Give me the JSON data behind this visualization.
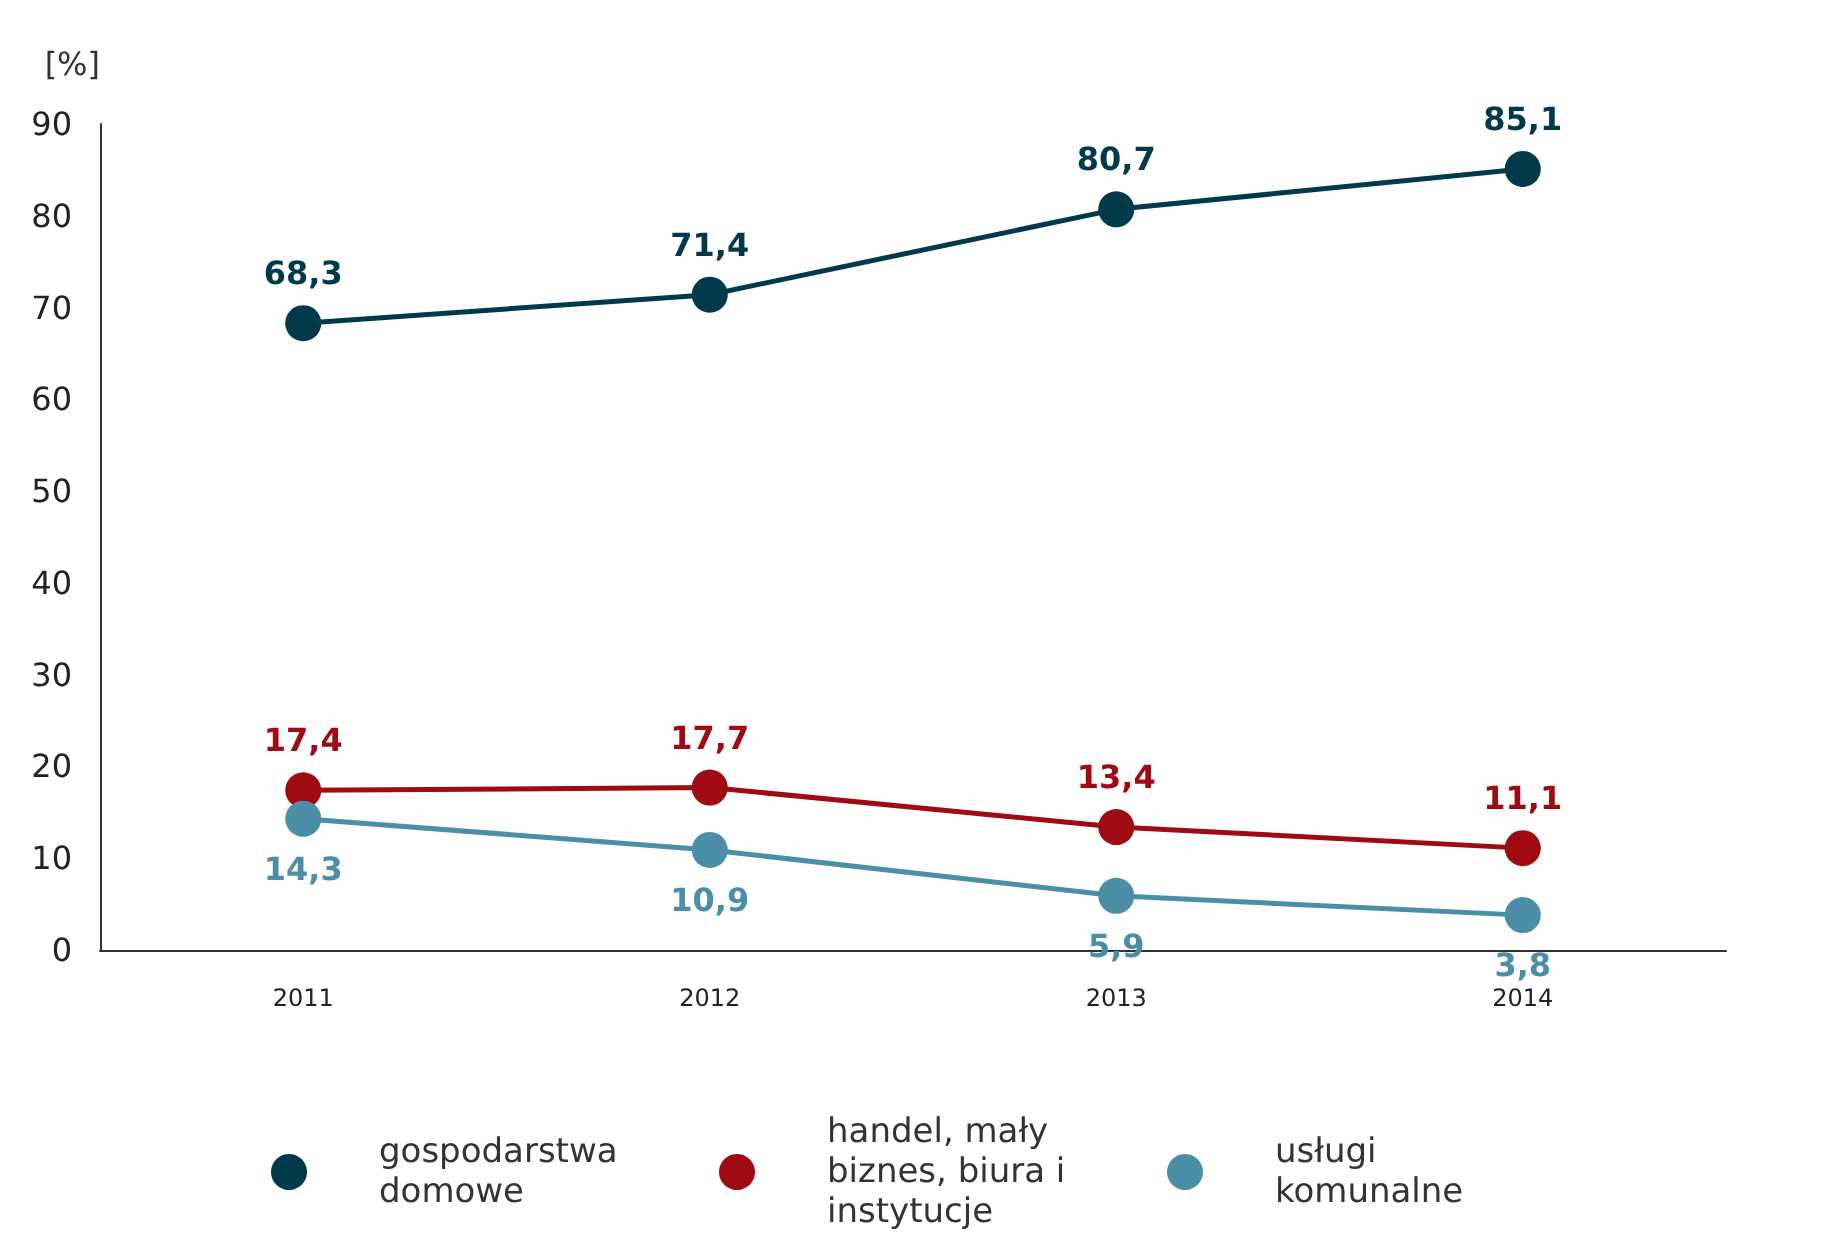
{
  "chart_data": {
    "type": "line",
    "ylabel": "[%]",
    "categories": [
      "2011",
      "2012",
      "2013",
      "2014"
    ],
    "series": [
      {
        "name": "gospodarstwa domowe",
        "color": "#013a4b",
        "values": [
          68.3,
          71.4,
          80.7,
          85.1
        ],
        "value_labels": [
          "68,3",
          "71,4",
          "80,7",
          "85,1"
        ]
      },
      {
        "name": "handel, mały biznes, biura i instytucje",
        "color": "#a00a12",
        "values": [
          17.4,
          17.7,
          13.4,
          11.1
        ],
        "value_labels": [
          "17,4",
          "17,7",
          "13,4",
          "11,1"
        ]
      },
      {
        "name": "usługi komunalne",
        "color": "#4a8ea8",
        "values": [
          14.3,
          10.9,
          5.9,
          3.8
        ],
        "value_labels": [
          "14,3",
          "10,9",
          "5,9",
          "3,8"
        ]
      }
    ],
    "ylim": [
      0,
      90
    ],
    "yticks": [
      0,
      10,
      20,
      30,
      40,
      50,
      60,
      70,
      80,
      90
    ],
    "grid": false,
    "legend": "bottom",
    "marker": "circle",
    "line_style": "solid"
  }
}
